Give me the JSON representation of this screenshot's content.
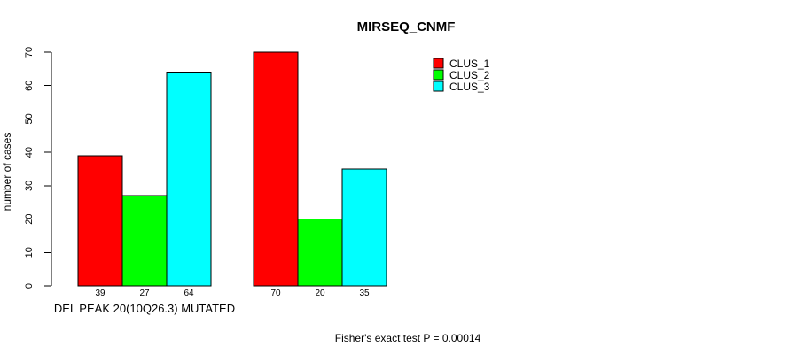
{
  "chart_data": {
    "type": "bar",
    "title": "MIRSEQ_CNMF",
    "xlabel": "",
    "ylabel": "number of cases",
    "categories": [
      "DEL PEAK 20(10Q26.3) MUTATED",
      ""
    ],
    "series": [
      {
        "name": "CLUS_1",
        "color": "#ff0000",
        "values": [
          39,
          70
        ]
      },
      {
        "name": "CLUS_2",
        "color": "#00ff00",
        "values": [
          27,
          20
        ]
      },
      {
        "name": "CLUS_3",
        "color": "#00ffff",
        "values": [
          64,
          35
        ]
      }
    ],
    "bar_value_labels": [
      [
        39,
        27,
        64
      ],
      [
        70,
        20,
        35
      ]
    ],
    "ylim": [
      0,
      70
    ],
    "yticks": [
      0,
      10,
      20,
      30,
      40,
      50,
      60,
      70
    ],
    "grid": false,
    "legend_position": "top-right",
    "annotation": "Fisher's exact test P = 0.00014"
  },
  "colors": {
    "background": "#ffffff",
    "bar_border": "#000000",
    "axis": "#000000",
    "text": "#000000"
  }
}
